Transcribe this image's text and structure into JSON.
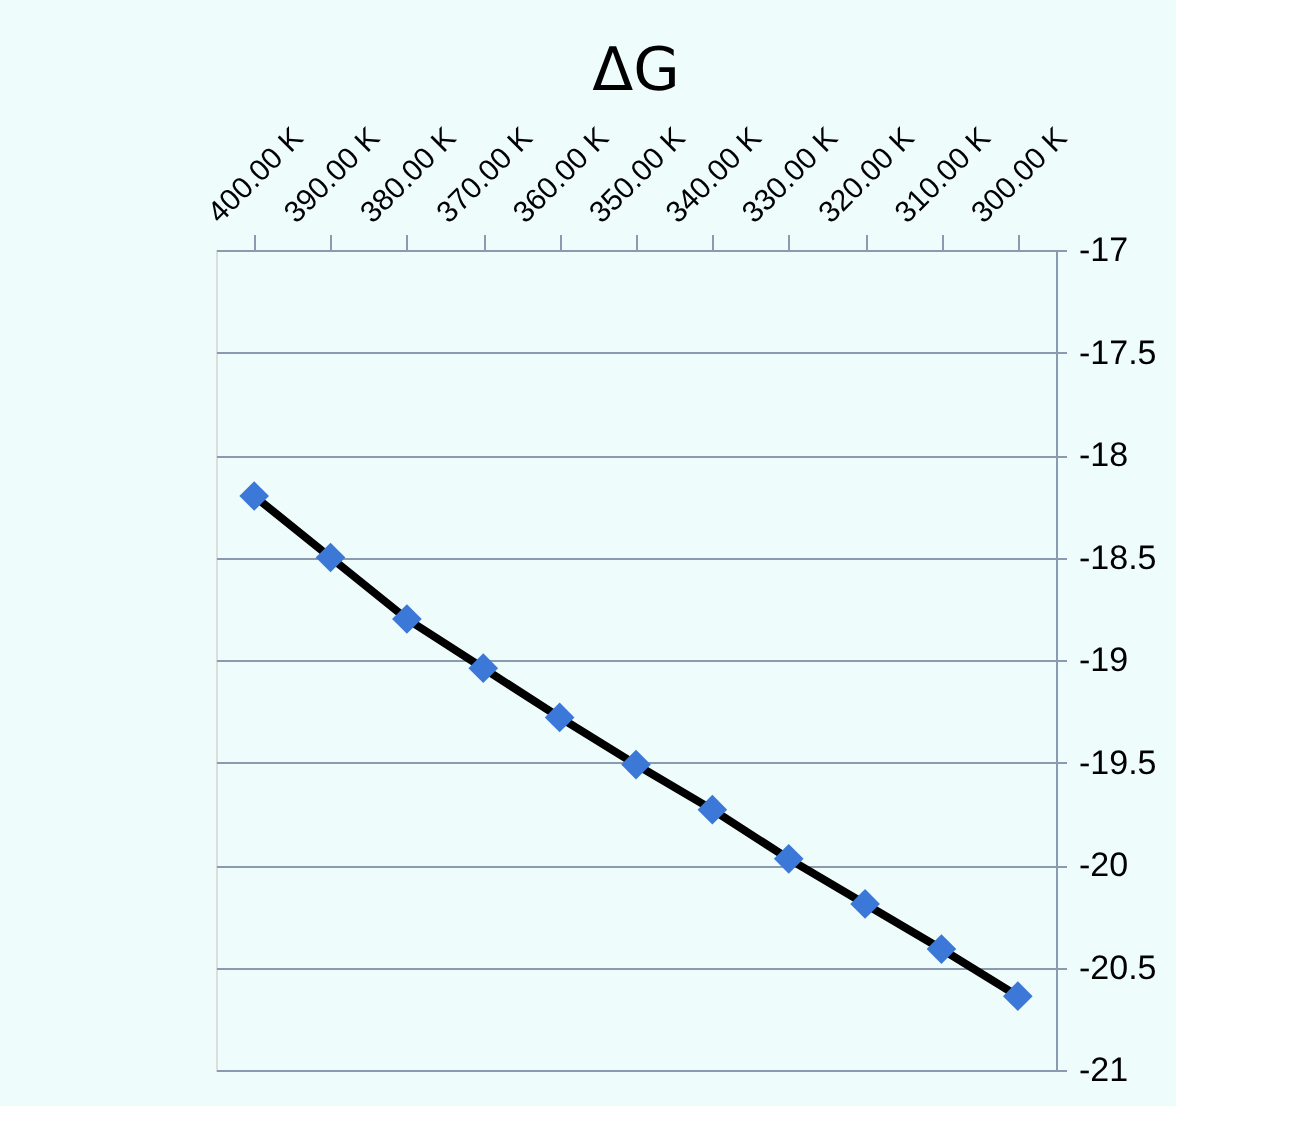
{
  "chart_data": {
    "type": "line",
    "title": "ΔG",
    "categories": [
      "400.00 K",
      "390.00 K",
      "380.00 K",
      "370.00 K",
      "360.00 K",
      "350.00 K",
      "340.00 K",
      "330.00 K",
      "320.00 K",
      "310.00 K",
      "300.00 K"
    ],
    "series": [
      {
        "color": "#3c78d8",
        "values": [
          -18.2,
          -18.5,
          -18.8,
          -19.04,
          -19.28,
          -19.51,
          -19.73,
          -19.97,
          -20.19,
          -20.41,
          -20.64
        ]
      }
    ],
    "ylim": [
      -21,
      -17
    ],
    "yticks": [
      -21,
      -20.5,
      -20,
      -19.5,
      -19,
      -18.5,
      -18,
      -17.5,
      -17
    ],
    "grid": "y",
    "marker": "diamond",
    "line_style": "solid"
  }
}
